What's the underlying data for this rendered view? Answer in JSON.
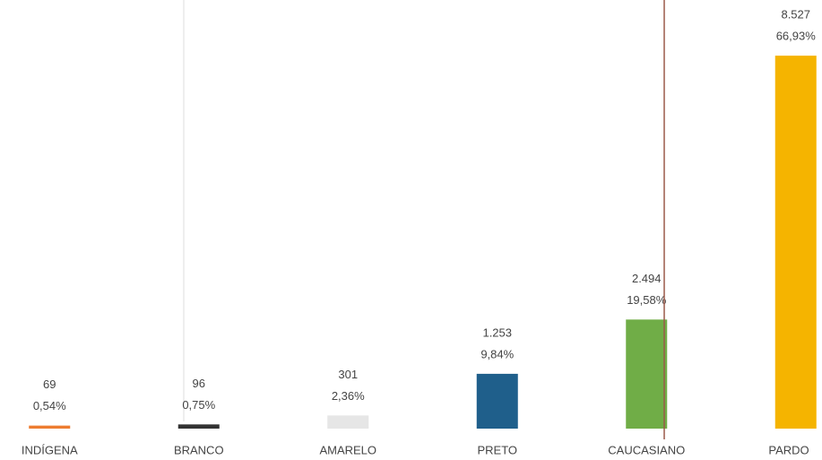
{
  "chart_data": {
    "type": "bar",
    "categories": [
      "INDÍGENA",
      "BRANCO",
      "AMARELO",
      "PRETO",
      "CAUCASIANO",
      "PARDO"
    ],
    "values": [
      69,
      96,
      301,
      1253,
      2494,
      8527
    ],
    "value_labels": [
      "69",
      "96",
      "301",
      "1.253",
      "2.494",
      "8.527"
    ],
    "share_labels": [
      "0,54%",
      "0,75%",
      "2,36%",
      "9,84%",
      "19,58%",
      "66,93%"
    ],
    "colors": [
      "#ed7d31",
      "#333333",
      "#e6e6e6",
      "#1f5f8b",
      "#70ad47",
      "#f5b400"
    ],
    "ylim": [
      0,
      9000
    ]
  }
}
